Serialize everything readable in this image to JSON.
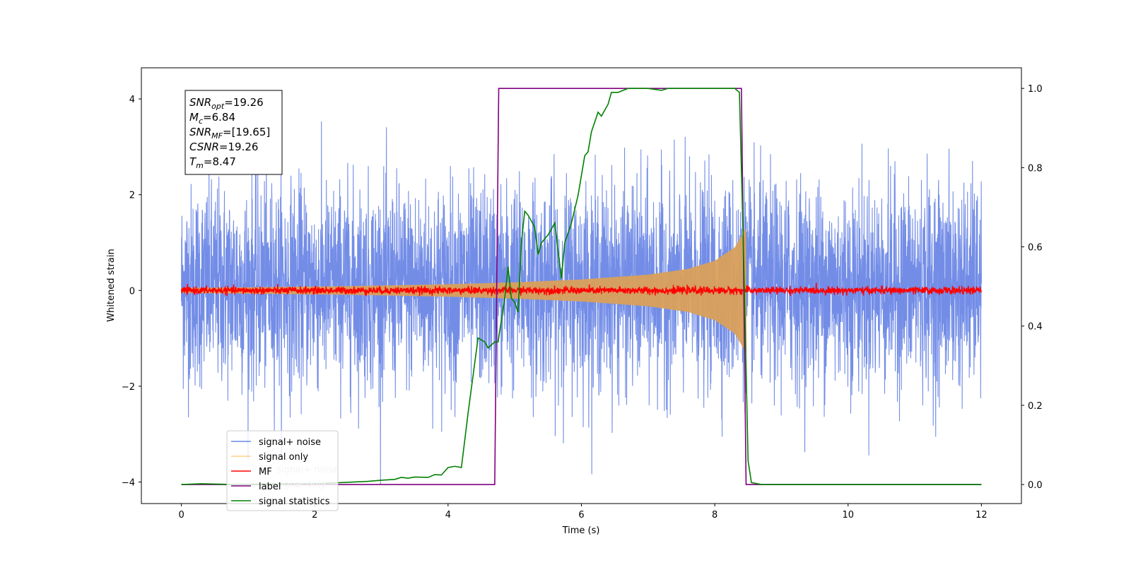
{
  "chart_data": {
    "type": "line",
    "title": "",
    "xlabel": "Time (s)",
    "ylabel_left": "Whitened strain",
    "ylabel_right": "",
    "xlim": [
      -0.6,
      12.6
    ],
    "ylim_left": [
      -4.45,
      4.65
    ],
    "ylim_right": [
      -0.048,
      1.052
    ],
    "x_ticks": [
      0,
      2,
      4,
      6,
      8,
      10,
      12
    ],
    "y_ticks_left": [
      -4,
      -2,
      0,
      2,
      4
    ],
    "y_ticks_right": [
      0.0,
      0.2,
      0.4,
      0.6,
      0.8,
      1.0
    ],
    "x_tick_labels": [
      "0",
      "2",
      "4",
      "6",
      "8",
      "10",
      "12"
    ],
    "y_tick_labels_left": [
      "−4",
      "−2",
      "0",
      "2",
      "4"
    ],
    "y_tick_labels_right": [
      "0.0",
      "0.2",
      "0.4",
      "0.6",
      "0.8",
      "1.0"
    ],
    "grid": false,
    "legend_placement": "lower-left",
    "series": [
      {
        "name": "signal+ noise",
        "axis": "left",
        "color": "#6b87e6",
        "style": "noise",
        "x_range": [
          0,
          12
        ],
        "typical_range": [
          -2.1,
          2.3
        ],
        "extremes": [
          -4.05,
          4.05
        ]
      },
      {
        "name": "signal only",
        "axis": "left",
        "color": "#d9a05a",
        "style": "chirp",
        "x_range": [
          0,
          8.47
        ],
        "envelope": [
          {
            "t": 0,
            "a": 0.05
          },
          {
            "t": 2.5,
            "a": 0.09
          },
          {
            "t": 4.0,
            "a": 0.13
          },
          {
            "t": 5.0,
            "a": 0.17
          },
          {
            "t": 6.0,
            "a": 0.23
          },
          {
            "t": 7.0,
            "a": 0.33
          },
          {
            "t": 7.6,
            "a": 0.45
          },
          {
            "t": 8.0,
            "a": 0.62
          },
          {
            "t": 8.3,
            "a": 0.9
          },
          {
            "t": 8.47,
            "a": 1.3
          }
        ]
      },
      {
        "name": "MF",
        "axis": "left",
        "color": "#ff0000",
        "style": "noise-small",
        "x_range": [
          0,
          12
        ],
        "typical_range": [
          -0.08,
          0.08
        ],
        "extremes": [
          -0.12,
          0.16
        ]
      },
      {
        "name": "label",
        "axis": "right",
        "color": "#800080",
        "style": "step",
        "points": [
          [
            0,
            0
          ],
          [
            4.7,
            0
          ],
          [
            4.76,
            1
          ],
          [
            8.4,
            1
          ],
          [
            8.47,
            0
          ],
          [
            12,
            0
          ]
        ]
      },
      {
        "name": "signal statistics",
        "axis": "right",
        "color": "#008000",
        "style": "line",
        "points": [
          [
            0,
            0.0
          ],
          [
            0.3,
            0.002
          ],
          [
            0.8,
            0.0
          ],
          [
            1.5,
            0.002
          ],
          [
            2.0,
            0.002
          ],
          [
            2.4,
            0.005
          ],
          [
            2.8,
            0.008
          ],
          [
            3.0,
            0.011
          ],
          [
            3.2,
            0.013
          ],
          [
            3.3,
            0.018
          ],
          [
            3.4,
            0.016
          ],
          [
            3.5,
            0.019
          ],
          [
            3.7,
            0.018
          ],
          [
            3.8,
            0.025
          ],
          [
            3.9,
            0.024
          ],
          [
            4.0,
            0.043
          ],
          [
            4.1,
            0.046
          ],
          [
            4.2,
            0.043
          ],
          [
            4.3,
            0.18
          ],
          [
            4.45,
            0.37
          ],
          [
            4.55,
            0.36
          ],
          [
            4.6,
            0.345
          ],
          [
            4.7,
            0.36
          ],
          [
            4.75,
            0.36
          ],
          [
            4.85,
            0.47
          ],
          [
            4.9,
            0.55
          ],
          [
            4.95,
            0.47
          ],
          [
            5.0,
            0.46
          ],
          [
            5.05,
            0.435
          ],
          [
            5.1,
            0.61
          ],
          [
            5.15,
            0.69
          ],
          [
            5.2,
            0.68
          ],
          [
            5.3,
            0.65
          ],
          [
            5.35,
            0.58
          ],
          [
            5.4,
            0.61
          ],
          [
            5.5,
            0.63
          ],
          [
            5.6,
            0.66
          ],
          [
            5.65,
            0.59
          ],
          [
            5.7,
            0.52
          ],
          [
            5.75,
            0.61
          ],
          [
            5.85,
            0.66
          ],
          [
            5.95,
            0.73
          ],
          [
            6.05,
            0.83
          ],
          [
            6.1,
            0.84
          ],
          [
            6.15,
            0.89
          ],
          [
            6.25,
            0.94
          ],
          [
            6.3,
            0.93
          ],
          [
            6.4,
            0.96
          ],
          [
            6.45,
            0.99
          ],
          [
            6.55,
            0.99
          ],
          [
            6.7,
            1.0
          ],
          [
            7.0,
            1.0
          ],
          [
            7.2,
            0.995
          ],
          [
            7.3,
            1.0
          ],
          [
            7.6,
            1.0
          ],
          [
            8.0,
            1.0
          ],
          [
            8.3,
            1.0
          ],
          [
            8.37,
            0.99
          ],
          [
            8.43,
            0.6
          ],
          [
            8.5,
            0.06
          ],
          [
            8.55,
            0.005
          ],
          [
            8.7,
            0.0
          ],
          [
            9.5,
            0.0
          ],
          [
            12,
            0.0
          ]
        ]
      }
    ],
    "annotation": {
      "lines": [
        {
          "base": "SNR",
          "sub": "opt",
          "value": "=19.26"
        },
        {
          "base": "M",
          "sub": "c",
          "value": "=6.84"
        },
        {
          "base": "SNR",
          "sub": "MF",
          "value": "=[19.65]"
        },
        {
          "base": "CSNR",
          "sub": "",
          "value": "=19.26"
        },
        {
          "base": "T",
          "sub": "m",
          "value": "=8.47"
        }
      ]
    },
    "legend": {
      "entries": [
        {
          "label": "signal+ noise",
          "color": "#6b87e6"
        },
        {
          "label": "signal only",
          "color": "#ffcf8a"
        },
        {
          "label": "MF",
          "color": "#ff0000"
        },
        {
          "label": "label",
          "color": "#800080"
        },
        {
          "label": "signal statistics",
          "color": "#008000"
        }
      ],
      "ghost_entries": [
        "signal+ noise",
        "signal only"
      ]
    }
  }
}
